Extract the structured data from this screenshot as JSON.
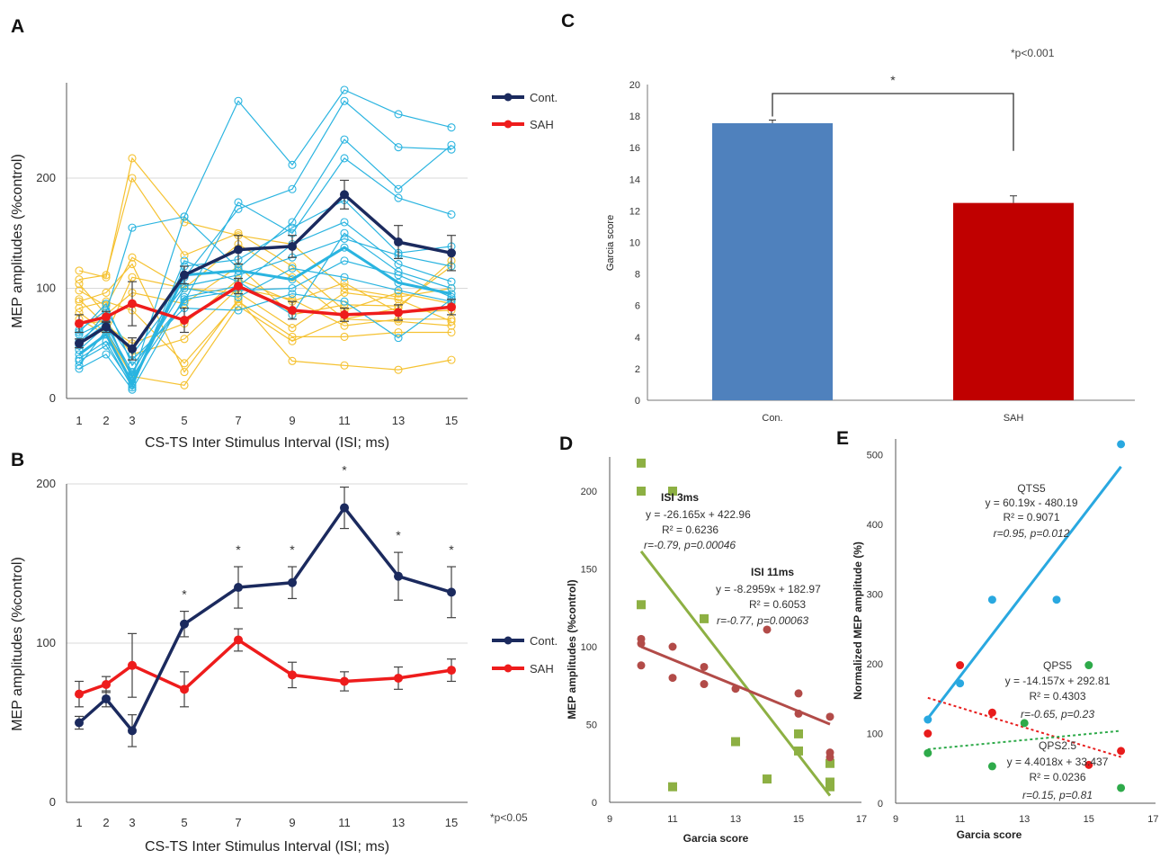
{
  "colors": {
    "control": "#1b2a5e",
    "sah": "#ee1c1c",
    "control_individual": "#2ab4e0",
    "sah_individual": "#f5c232",
    "bar_control": "#4f81bd",
    "bar_sah": "#c00000",
    "isi3": "#8db043",
    "isi11": "#b24b48",
    "qts5": "#29a8e0",
    "qps5": "#e81c1c",
    "qps25": "#2eaa4a",
    "grid": "#d9d9d9"
  },
  "chart_data": [
    {
      "id": "A",
      "panel_label": "A",
      "type": "line",
      "xlabel": "CS-TS Inter Stimulus Interval (ISI; ms)",
      "ylabel": "MEP amplitudes (%control)",
      "x": [
        1,
        2,
        3,
        5,
        7,
        9,
        11,
        13,
        15
      ],
      "ylim": [
        0,
        280
      ],
      "yticks": [
        0,
        100,
        200
      ],
      "grid": true,
      "legend": [
        {
          "name": "Cont."
        },
        {
          "name": "SAH"
        }
      ],
      "series": [
        {
          "name": "Cont.",
          "values": [
            50,
            65,
            45,
            112,
            135,
            138,
            185,
            142,
            132
          ],
          "err": [
            4,
            5,
            10,
            8,
            13,
            10,
            13,
            15,
            16
          ]
        },
        {
          "name": "SAH",
          "values": [
            68,
            74,
            86,
            71,
            102,
            80,
            76,
            78,
            83
          ],
          "err": [
            8,
            5,
            20,
            11,
            7,
            8,
            6,
            7,
            7
          ]
        }
      ],
      "individual_control": [
        [
          48,
          78,
          155,
          165,
          270,
          212,
          280,
          258,
          246
        ],
        [
          30,
          62,
          22,
          110,
          172,
          190,
          270,
          228,
          226
        ],
        [
          52,
          72,
          18,
          165,
          118,
          160,
          235,
          190,
          230
        ],
        [
          60,
          86,
          30,
          88,
          178,
          150,
          218,
          182,
          167
        ],
        [
          36,
          52,
          10,
          120,
          126,
          155,
          180,
          132,
          138
        ],
        [
          27,
          40,
          8,
          92,
          102,
          140,
          160,
          122,
          106
        ],
        [
          40,
          58,
          14,
          112,
          116,
          108,
          137,
          105,
          95
        ],
        [
          44,
          66,
          24,
          100,
          92,
          118,
          110,
          98,
          88
        ],
        [
          58,
          70,
          35,
          82,
          80,
          95,
          88,
          55,
          90
        ],
        [
          34,
          48,
          12,
          125,
          106,
          76,
          150,
          115,
          100
        ],
        [
          62,
          80,
          40,
          102,
          112,
          128,
          145,
          130,
          120
        ],
        [
          50,
          68,
          20,
          90,
          98,
          100,
          125,
          112,
          92
        ]
      ],
      "individual_sah": [
        [
          116,
          110,
          218,
          160,
          148,
          140,
          100,
          92,
          100
        ],
        [
          108,
          112,
          200,
          130,
          150,
          120,
          80,
          96,
          86
        ],
        [
          98,
          84,
          128,
          100,
          140,
          110,
          72,
          82,
          125
        ],
        [
          88,
          96,
          122,
          24,
          90,
          34,
          30,
          26,
          35
        ],
        [
          82,
          88,
          80,
          32,
          88,
          56,
          56,
          60,
          60
        ],
        [
          78,
          60,
          20,
          12,
          84,
          52,
          72,
          70,
          66
        ],
        [
          72,
          58,
          110,
          100,
          96,
          64,
          96,
          90,
          70
        ],
        [
          90,
          66,
          50,
          68,
          108,
          88,
          105,
          78,
          80
        ],
        [
          104,
          76,
          96,
          86,
          120,
          76,
          85,
          84,
          120
        ],
        [
          68,
          70,
          40,
          54,
          100,
          90,
          66,
          72,
          72
        ]
      ]
    },
    {
      "id": "B",
      "panel_label": "B",
      "type": "line",
      "xlabel": "CS-TS Inter Stimulus Interval (ISI; ms)",
      "ylabel": "MEP amplitudes (%control)",
      "x": [
        1,
        2,
        3,
        5,
        7,
        9,
        11,
        13,
        15
      ],
      "ylim": [
        0,
        200
      ],
      "yticks": [
        0,
        100,
        200
      ],
      "grid": true,
      "legend": [
        {
          "name": "Cont."
        },
        {
          "name": "SAH"
        }
      ],
      "series": [
        {
          "name": "Cont.",
          "values": [
            50,
            65,
            45,
            112,
            135,
            138,
            185,
            142,
            132
          ],
          "err": [
            4,
            5,
            10,
            8,
            13,
            10,
            13,
            15,
            16
          ]
        },
        {
          "name": "SAH",
          "values": [
            68,
            74,
            86,
            71,
            102,
            80,
            76,
            78,
            83
          ],
          "err": [
            8,
            5,
            20,
            11,
            7,
            8,
            6,
            7,
            7
          ]
        }
      ],
      "significant_x": [
        5,
        7,
        9,
        11,
        13,
        15
      ],
      "star": "*",
      "note": "*p<0.05"
    },
    {
      "id": "C",
      "panel_label": "C",
      "type": "bar",
      "categories": [
        "Con.",
        "SAH"
      ],
      "values": [
        17.55,
        12.5
      ],
      "err": [
        0.2,
        0.45
      ],
      "ylabel": "Garcia score",
      "xlabel": "",
      "ylim": [
        0,
        20
      ],
      "yticks": [
        0,
        2,
        4,
        6,
        8,
        10,
        12,
        14,
        16,
        18,
        20
      ],
      "star": "*",
      "note": "*p<0.001"
    },
    {
      "id": "D",
      "panel_label": "D",
      "type": "scatter",
      "xlabel": "Garcia score",
      "ylabel": "MEP amplitudes (%control)",
      "xlim": [
        9,
        17
      ],
      "ylim": [
        0,
        220
      ],
      "xticks": [
        9,
        11,
        13,
        15,
        17
      ],
      "yticks": [
        0,
        50,
        100,
        150,
        200
      ],
      "series": [
        {
          "name": "ISI 3ms",
          "marker": "square",
          "points": [
            [
              10,
              218
            ],
            [
              10,
              200
            ],
            [
              11,
              200
            ],
            [
              10,
              127
            ],
            [
              12,
              118
            ],
            [
              11,
              10
            ],
            [
              13,
              39
            ],
            [
              14,
              15
            ],
            [
              15,
              44
            ],
            [
              15,
              33
            ],
            [
              16,
              25
            ],
            [
              16,
              13
            ],
            [
              16,
              10
            ]
          ],
          "fit": {
            "slope": -26.165,
            "intercept": 422.96,
            "x_range": [
              10,
              16
            ]
          },
          "annotation": {
            "title": "ISI  3ms",
            "equation": "y = -26.165x + 422.96",
            "r2": "R² = 0.6236",
            "stats": "r=-0.79, p=0.00046"
          }
        },
        {
          "name": "ISI 11ms",
          "marker": "circle",
          "points": [
            [
              10,
              105
            ],
            [
              10,
              102
            ],
            [
              10,
              88
            ],
            [
              11,
              100
            ],
            [
              11,
              80
            ],
            [
              12,
              87
            ],
            [
              12,
              76
            ],
            [
              13,
              73
            ],
            [
              14,
              111
            ],
            [
              15,
              70
            ],
            [
              15,
              57
            ],
            [
              16,
              55
            ],
            [
              16,
              32
            ],
            [
              16,
              29
            ]
          ],
          "fit": {
            "slope": -8.2959,
            "intercept": 182.97,
            "x_range": [
              10,
              16
            ]
          },
          "annotation": {
            "title": "ISI  11ms",
            "equation": "y = -8.2959x + 182.97",
            "r2": "R² = 0.6053",
            "stats": "r=-0.77, p=0.00063"
          }
        }
      ]
    },
    {
      "id": "E",
      "panel_label": "E",
      "type": "scatter",
      "xlabel": "Garcia score",
      "ylabel": "Normalized MEP amplitude (%)",
      "xlim": [
        9,
        17
      ],
      "ylim": [
        0,
        520
      ],
      "xticks": [
        9,
        11,
        13,
        15,
        17
      ],
      "yticks": [
        0,
        100,
        200,
        300,
        400,
        500
      ],
      "series": [
        {
          "name": "QTS5",
          "marker": "circle",
          "points": [
            [
              10,
              120
            ],
            [
              11,
              172
            ],
            [
              12,
              292
            ],
            [
              14,
              292
            ],
            [
              16,
              515
            ]
          ],
          "fit": {
            "slope": 60.19,
            "intercept": -480.19,
            "x_range": [
              10,
              16
            ],
            "dashed": false
          },
          "annotation": {
            "title": "QTS5",
            "equation": "y = 60.19x - 480.19",
            "r2": "R² = 0.9071",
            "stats": "r=0.95, p=0.012"
          }
        },
        {
          "name": "QPS5",
          "marker": "circle",
          "points": [
            [
              10,
              100
            ],
            [
              11,
              198
            ],
            [
              12,
              130
            ],
            [
              15,
              55
            ],
            [
              16,
              75
            ]
          ],
          "fit": {
            "slope": -14.157,
            "intercept": 292.81,
            "x_range": [
              10,
              16
            ],
            "dashed": true
          },
          "annotation": {
            "title": "QPS5",
            "equation": "y = -14.157x + 292.81",
            "r2": "R² = 0.4303",
            "stats": "r=-0.65, p=0.23"
          }
        },
        {
          "name": "QPS2.5",
          "marker": "circle",
          "points": [
            [
              10,
              72
            ],
            [
              12,
              53
            ],
            [
              13,
              115
            ],
            [
              15,
              198
            ],
            [
              16,
              22
            ]
          ],
          "fit": {
            "slope": 4.4018,
            "intercept": 33.437,
            "x_range": [
              10,
              16
            ],
            "dashed": true
          },
          "annotation": {
            "title": "QPS2.5",
            "equation": "y = 4.4018x + 33.437",
            "r2": "R² = 0.0236",
            "stats": "r=0.15, p=0.81"
          }
        }
      ]
    }
  ]
}
